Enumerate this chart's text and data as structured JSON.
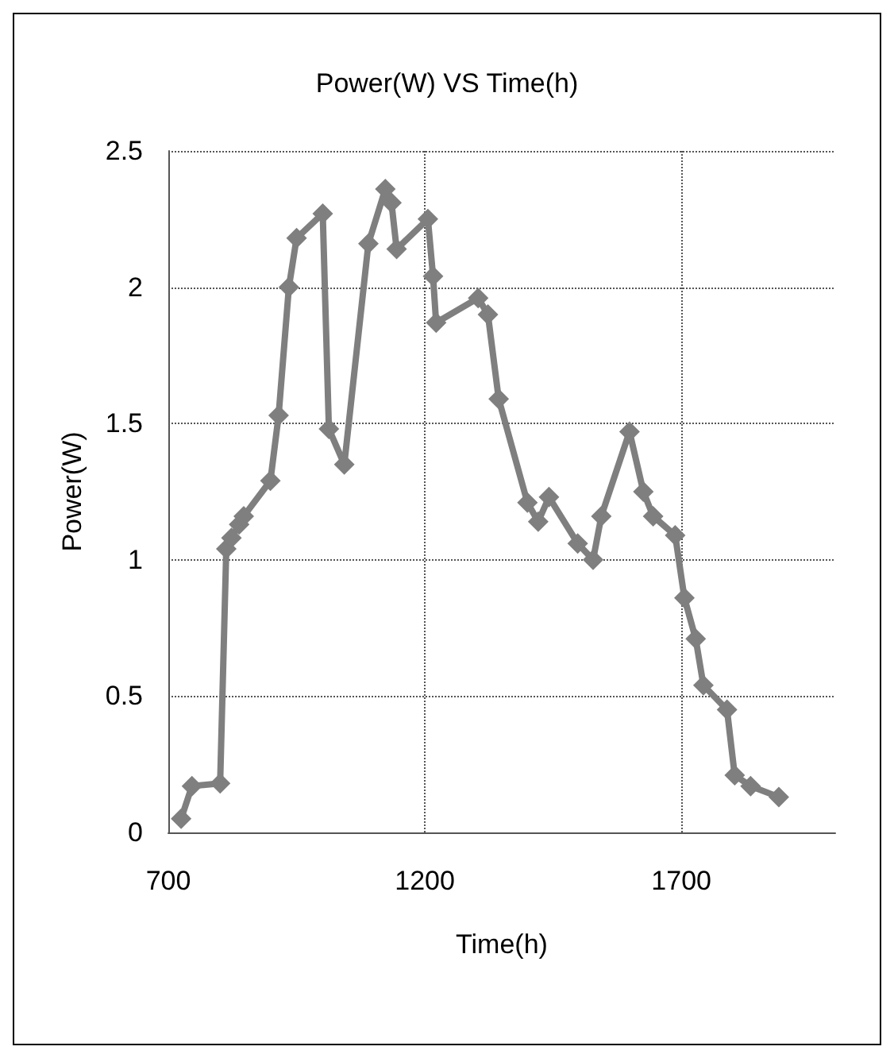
{
  "chart_data": {
    "type": "line",
    "title": "Power(W) VS Time(h)",
    "xlabel": "Time(h)",
    "ylabel": "Power(W)",
    "x": [
      725,
      746,
      801,
      813,
      823,
      838,
      847,
      899,
      915,
      935,
      950,
      1001,
      1013,
      1043,
      1090,
      1123,
      1135,
      1145,
      1206,
      1216,
      1222,
      1304,
      1323,
      1344,
      1400,
      1421,
      1442,
      1498,
      1528,
      1544,
      1599,
      1626,
      1645,
      1688,
      1706,
      1728,
      1743,
      1789,
      1804,
      1835,
      1890
    ],
    "values": [
      0.05,
      0.17,
      0.18,
      1.04,
      1.08,
      1.13,
      1.16,
      1.29,
      1.53,
      2.0,
      2.18,
      2.27,
      1.48,
      1.35,
      2.16,
      2.36,
      2.31,
      2.14,
      2.25,
      2.04,
      1.87,
      1.96,
      1.9,
      1.59,
      1.21,
      1.14,
      1.23,
      1.06,
      1.0,
      1.16,
      1.47,
      1.25,
      1.16,
      1.09,
      0.86,
      0.71,
      0.54,
      0.45,
      0.21,
      0.17,
      0.13
    ],
    "color": "#7f7f7f",
    "xlim": [
      700,
      2000
    ],
    "xticks": [
      700,
      1200,
      1700
    ],
    "ylim": [
      0,
      2.5
    ],
    "yticks": [
      0,
      0.5,
      1,
      1.5,
      2,
      2.5
    ],
    "grid": true,
    "marker": "diamond",
    "line_style": "solid"
  }
}
